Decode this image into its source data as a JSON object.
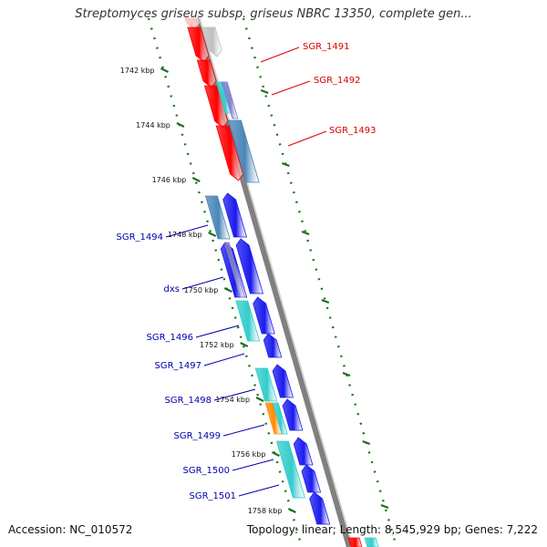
{
  "title": "Streptomyces griseus subsp. griseus NBRC 13350, complete gen...",
  "footer": {
    "accession": "Accession: NC_010572",
    "stats": "Topology: linear; Length: 8,545,929 bp; Genes: 7,222"
  },
  "colors": {
    "backbone": "#808080",
    "scale_dots": "#1a7a1a",
    "scale_ticks": "#1f6f1f",
    "red": "#ff0000",
    "blue": "#1a1aee",
    "steel": "#4a86b8",
    "cyan": "#33cccc",
    "orange": "#ff8c00",
    "gray": "#bfbfbf",
    "purple": "#8080cc",
    "pink": "#ffc0c0",
    "label_red": "#dd0000",
    "label_blue": "#0000aa"
  },
  "scale_ticks": [
    {
      "label": "1742 kbp"
    },
    {
      "label": "1744 kbp"
    },
    {
      "label": "1746 kbp"
    },
    {
      "label": "1748 kbp"
    },
    {
      "label": "1750 kbp"
    },
    {
      "label": "1752 kbp"
    },
    {
      "label": "1754 kbp"
    },
    {
      "label": "1756 kbp"
    },
    {
      "label": "1758 kbp"
    }
  ],
  "genes": [
    {
      "name": "SGR_1491",
      "label_color": "label_red"
    },
    {
      "name": "SGR_1492",
      "label_color": "label_red"
    },
    {
      "name": "SGR_1493",
      "label_color": "label_red"
    },
    {
      "name": "SGR_1494",
      "label_color": "label_blue"
    },
    {
      "name": "dxs",
      "label_color": "label_blue"
    },
    {
      "name": "SGR_1496",
      "label_color": "label_blue"
    },
    {
      "name": "SGR_1497",
      "label_color": "label_blue"
    },
    {
      "name": "SGR_1498",
      "label_color": "label_blue"
    },
    {
      "name": "SGR_1499",
      "label_color": "label_blue"
    },
    {
      "name": "SGR_1500",
      "label_color": "label_blue"
    },
    {
      "name": "SGR_1501",
      "label_color": "label_blue"
    }
  ]
}
